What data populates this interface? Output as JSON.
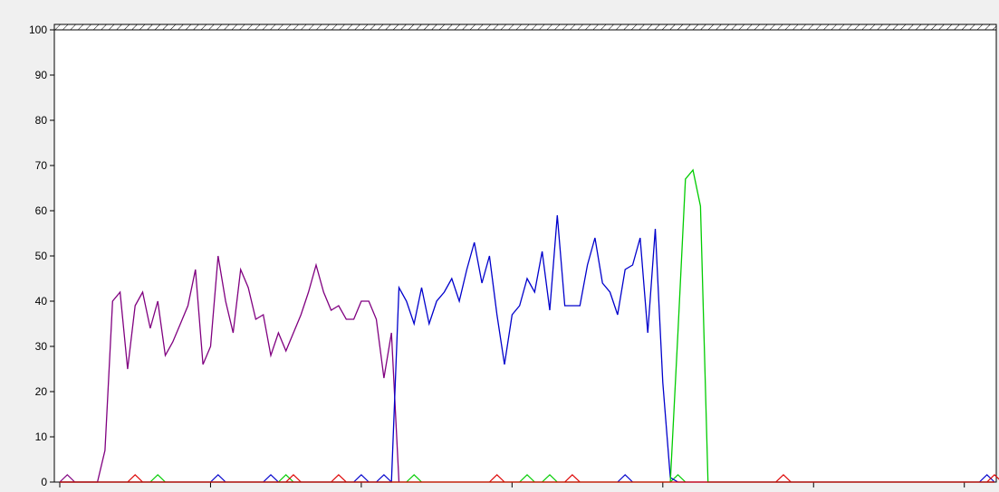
{
  "chart_data": {
    "type": "line",
    "title": "",
    "xlabel": "",
    "ylabel": "",
    "ylim": [
      0,
      100
    ],
    "yticks": [
      0,
      10,
      20,
      30,
      40,
      50,
      60,
      70,
      80,
      90,
      100
    ],
    "x_count": 125,
    "grid": false,
    "legend": "none",
    "series": [
      {
        "color": "#800080",
        "points": [
          [
            0,
            0
          ],
          [
            5,
            0
          ],
          [
            6,
            7
          ],
          [
            7,
            40
          ],
          [
            8,
            42
          ],
          [
            9,
            25
          ],
          [
            10,
            39
          ],
          [
            11,
            42
          ],
          [
            12,
            34
          ],
          [
            13,
            40
          ],
          [
            14,
            28
          ],
          [
            15,
            31
          ],
          [
            16,
            35
          ],
          [
            17,
            39
          ],
          [
            18,
            47
          ],
          [
            19,
            26
          ],
          [
            20,
            30
          ],
          [
            21,
            50
          ],
          [
            22,
            40
          ],
          [
            23,
            33
          ],
          [
            24,
            47
          ],
          [
            25,
            43
          ],
          [
            26,
            36
          ],
          [
            27,
            37
          ],
          [
            28,
            28
          ],
          [
            29,
            33
          ],
          [
            30,
            29
          ],
          [
            31,
            33
          ],
          [
            32,
            37
          ],
          [
            33,
            42
          ],
          [
            34,
            48
          ],
          [
            35,
            42
          ],
          [
            36,
            38
          ],
          [
            37,
            39
          ],
          [
            38,
            36
          ],
          [
            39,
            36
          ],
          [
            40,
            40
          ],
          [
            41,
            40
          ],
          [
            42,
            36
          ],
          [
            43,
            23
          ],
          [
            44,
            33
          ],
          [
            45,
            0
          ]
        ]
      },
      {
        "color": "#0000cc",
        "points": [
          [
            0,
            0
          ],
          [
            44,
            0
          ],
          [
            45,
            43
          ],
          [
            46,
            40
          ],
          [
            47,
            35
          ],
          [
            48,
            43
          ],
          [
            49,
            35
          ],
          [
            50,
            40
          ],
          [
            51,
            42
          ],
          [
            52,
            45
          ],
          [
            53,
            40
          ],
          [
            54,
            47
          ],
          [
            55,
            53
          ],
          [
            56,
            44
          ],
          [
            57,
            50
          ],
          [
            58,
            37
          ],
          [
            59,
            26
          ],
          [
            60,
            37
          ],
          [
            61,
            39
          ],
          [
            62,
            45
          ],
          [
            63,
            42
          ],
          [
            64,
            51
          ],
          [
            65,
            38
          ],
          [
            66,
            59
          ],
          [
            67,
            39
          ],
          [
            68,
            39
          ],
          [
            69,
            39
          ],
          [
            70,
            48
          ],
          [
            71,
            54
          ],
          [
            72,
            44
          ],
          [
            73,
            42
          ],
          [
            74,
            37
          ],
          [
            75,
            47
          ],
          [
            76,
            48
          ],
          [
            77,
            54
          ],
          [
            78,
            33
          ],
          [
            79,
            56
          ],
          [
            80,
            22
          ],
          [
            81,
            1
          ],
          [
            82,
            0
          ],
          [
            124,
            0
          ]
        ]
      },
      {
        "color": "#00cc00",
        "points": [
          [
            0,
            0
          ],
          [
            81,
            0
          ],
          [
            82,
            33
          ],
          [
            83,
            67
          ],
          [
            84,
            69
          ],
          [
            85,
            61
          ],
          [
            86,
            0
          ],
          [
            124,
            0
          ]
        ]
      },
      {
        "color": "#dd0000",
        "points": [
          [
            0,
            0
          ],
          [
            124,
            0
          ]
        ]
      }
    ],
    "blips": [
      {
        "color": "#800080",
        "x": [
          1
        ]
      },
      {
        "color": "#0000cc",
        "x": [
          21,
          28,
          40,
          43,
          75,
          123
        ]
      },
      {
        "color": "#00cc00",
        "x": [
          13,
          30,
          47,
          62,
          65,
          82
        ]
      },
      {
        "color": "#dd0000",
        "x": [
          10,
          31,
          37,
          58,
          68,
          96,
          124
        ]
      }
    ]
  }
}
